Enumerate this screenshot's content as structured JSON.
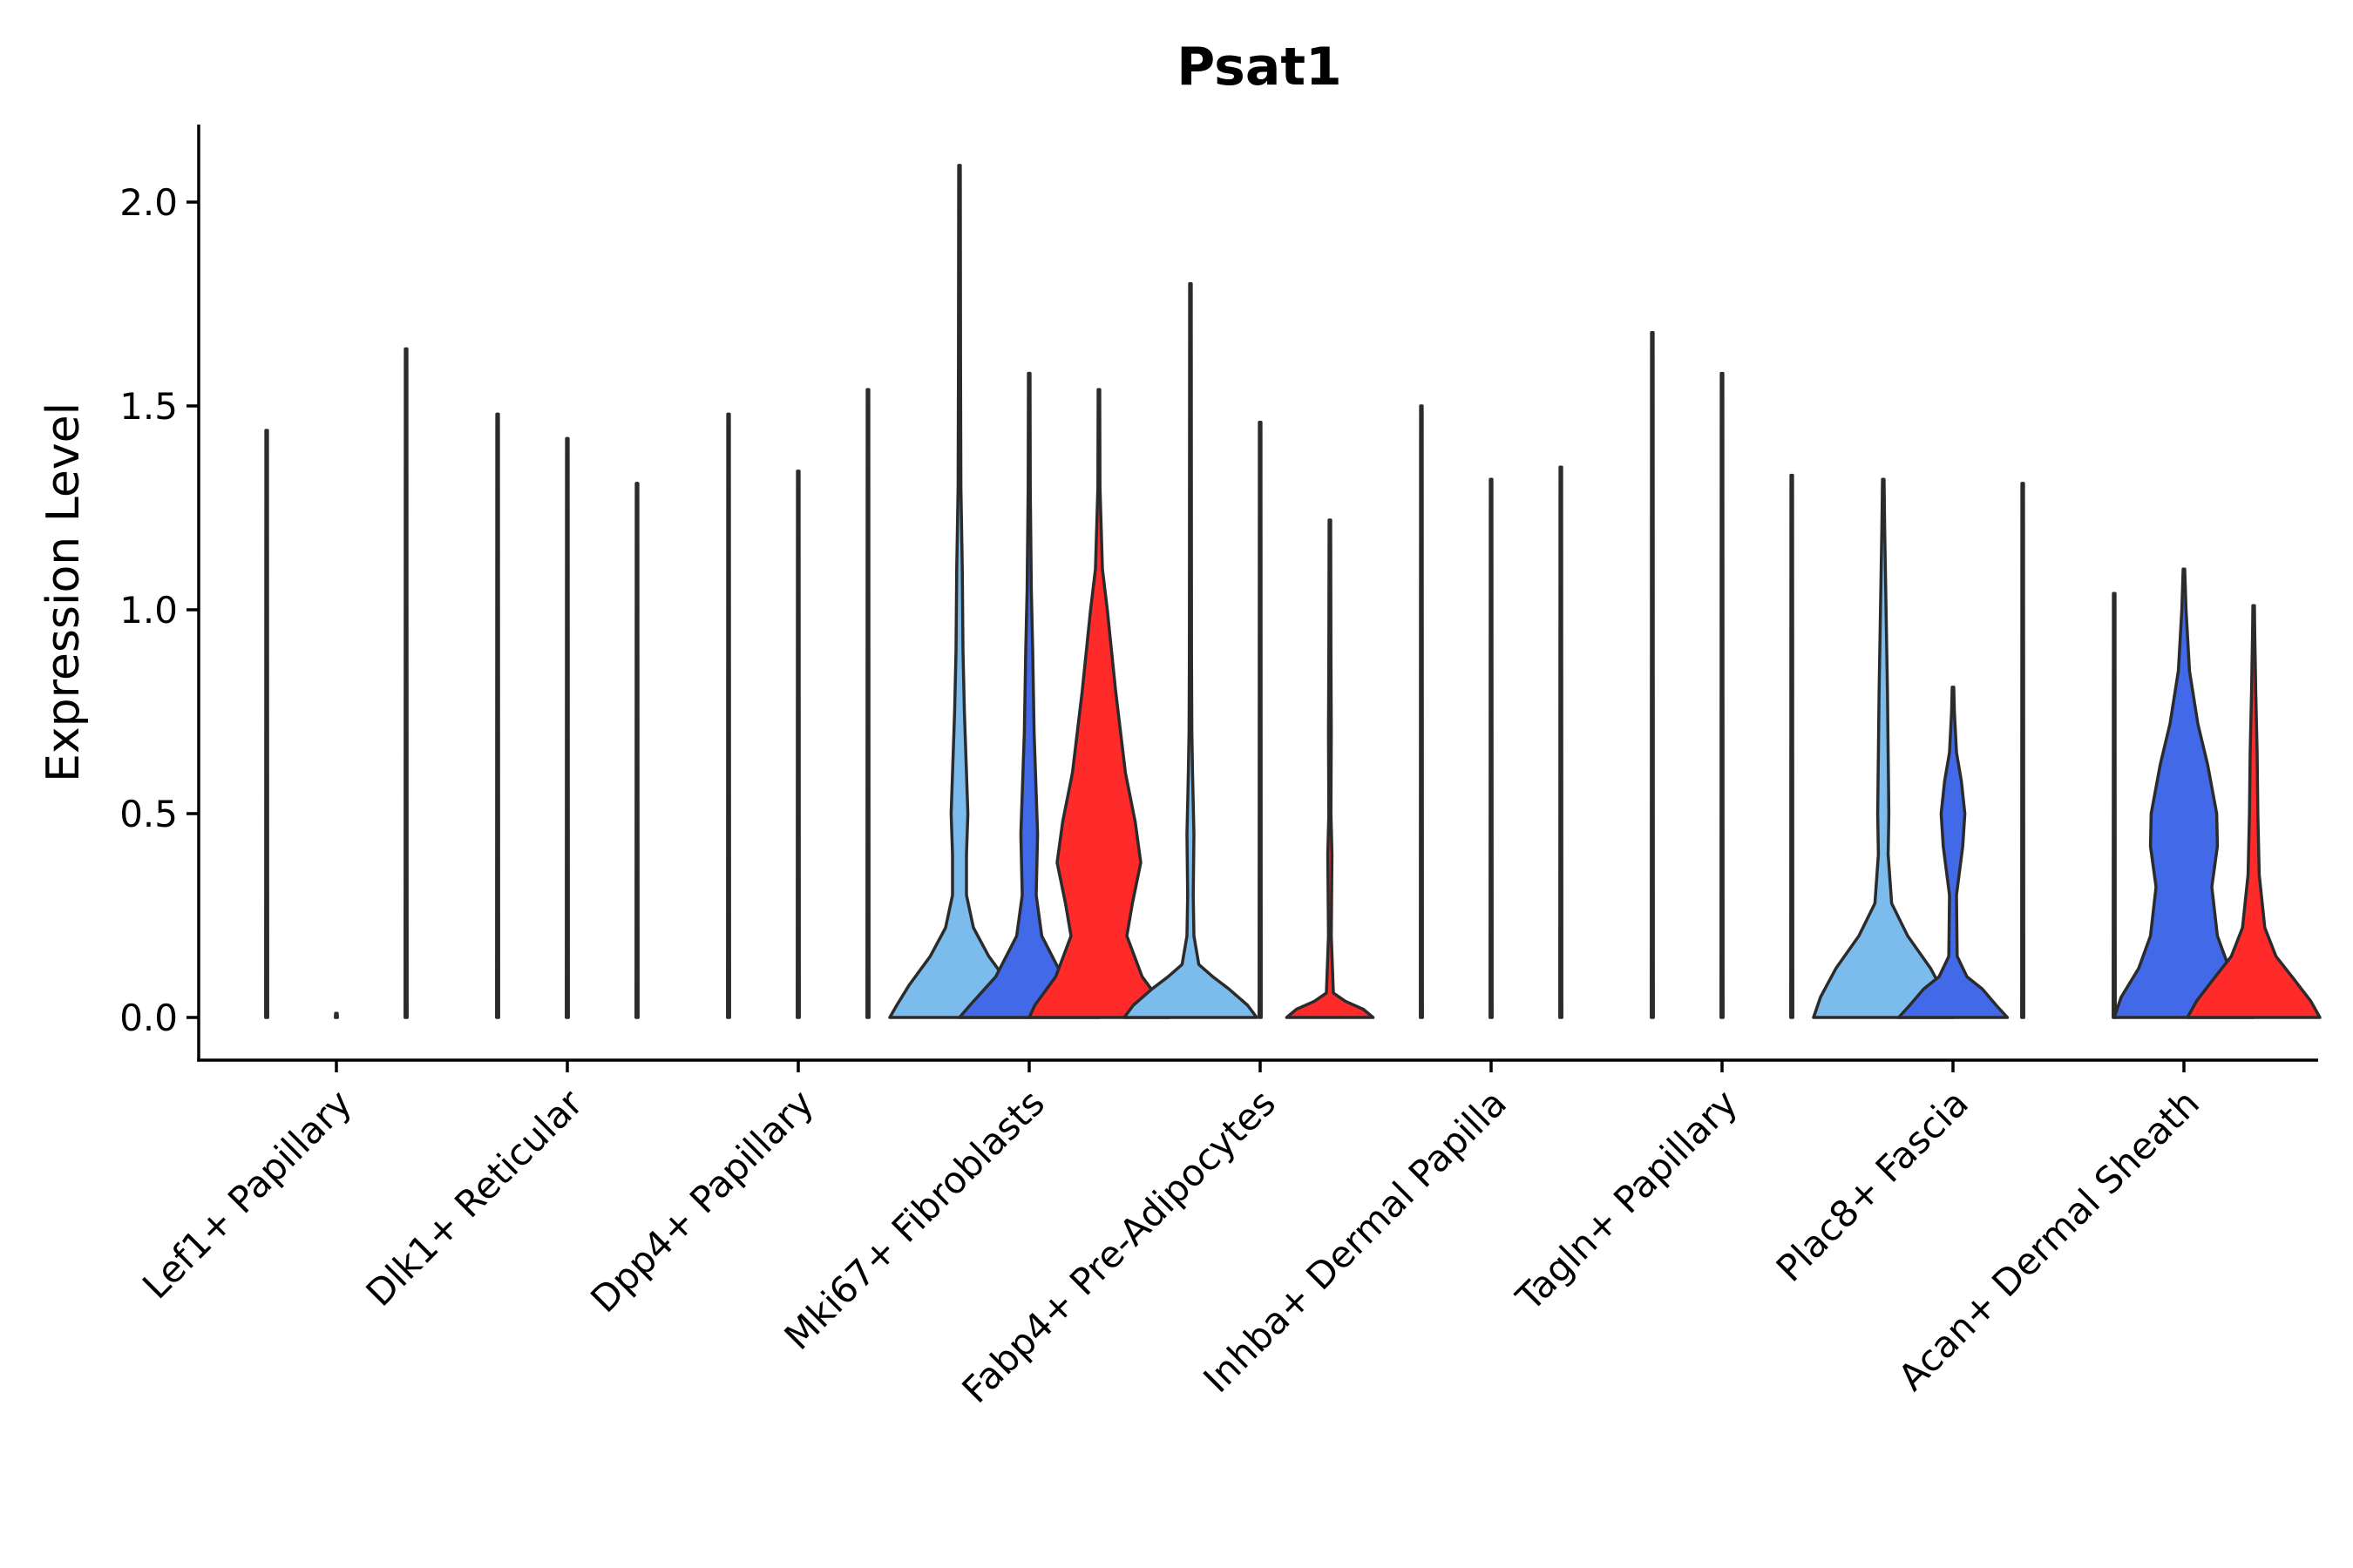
{
  "chart_data": {
    "type": "violin",
    "title": "Psat1",
    "xlabel": "",
    "ylabel": "Expression Level",
    "ylim": [
      -0.1,
      2.2
    ],
    "yticks": [
      0.0,
      0.5,
      1.0,
      1.5,
      2.0
    ],
    "ytick_labels": [
      "0.0",
      "0.5",
      "1.0",
      "1.5",
      "2.0"
    ],
    "categories": [
      "Lef1+ Papillary",
      "Dlk1+ Reticular",
      "Dpp4+ Papillary",
      "Mki67+ Fibroblasts",
      "Fabp4+ Pre-Adipocytes",
      "Inhba+ Dermal Papilla",
      "Tagln+ Papillary",
      "Plac8+ Fascia",
      "Acan+ Dermal Sheath"
    ],
    "series_colors": [
      "#7bbcec",
      "#4169e8",
      "#ff2a2a"
    ],
    "violins": [
      {
        "category": 0,
        "series": 0,
        "max": 1.44,
        "profile": [
          [
            0,
            0.004
          ]
        ]
      },
      {
        "category": 0,
        "series": 1,
        "max": 0.01,
        "profile": [
          [
            0,
            0.004
          ]
        ]
      },
      {
        "category": 0,
        "series": 2,
        "max": 1.64,
        "profile": [
          [
            0,
            0.004
          ]
        ]
      },
      {
        "category": 1,
        "series": 0,
        "max": 1.48,
        "profile": [
          [
            0,
            0.004
          ]
        ]
      },
      {
        "category": 1,
        "series": 1,
        "max": 1.42,
        "profile": [
          [
            0,
            0.004
          ]
        ]
      },
      {
        "category": 1,
        "series": 2,
        "max": 1.31,
        "profile": [
          [
            0,
            0.004
          ]
        ]
      },
      {
        "category": 2,
        "series": 0,
        "max": 1.48,
        "profile": [
          [
            0,
            0.004
          ]
        ]
      },
      {
        "category": 2,
        "series": 1,
        "max": 1.34,
        "profile": [
          [
            0,
            0.004
          ]
        ]
      },
      {
        "category": 2,
        "series": 2,
        "max": 1.54,
        "profile": [
          [
            0,
            0.004
          ]
        ]
      },
      {
        "category": 3,
        "series": 0,
        "max": 2.09,
        "profile": [
          [
            0,
            1.0
          ],
          [
            0.03,
            0.9
          ],
          [
            0.08,
            0.72
          ],
          [
            0.15,
            0.42
          ],
          [
            0.22,
            0.2
          ],
          [
            0.3,
            0.1
          ],
          [
            0.4,
            0.1
          ],
          [
            0.5,
            0.12
          ],
          [
            0.6,
            0.1
          ],
          [
            0.75,
            0.07
          ],
          [
            0.9,
            0.05
          ],
          [
            1.1,
            0.04
          ],
          [
            1.3,
            0.02
          ],
          [
            1.6,
            0.008
          ]
        ]
      },
      {
        "category": 3,
        "series": 1,
        "max": 1.58,
        "profile": [
          [
            0,
            1.0
          ],
          [
            0.03,
            0.85
          ],
          [
            0.1,
            0.48
          ],
          [
            0.2,
            0.18
          ],
          [
            0.3,
            0.1
          ],
          [
            0.45,
            0.12
          ],
          [
            0.55,
            0.1
          ],
          [
            0.7,
            0.07
          ],
          [
            0.9,
            0.05
          ],
          [
            1.05,
            0.03
          ],
          [
            1.3,
            0.01
          ]
        ]
      },
      {
        "category": 3,
        "series": 2,
        "max": 1.54,
        "profile": [
          [
            0,
            1.0
          ],
          [
            0.03,
            0.92
          ],
          [
            0.1,
            0.62
          ],
          [
            0.2,
            0.4
          ],
          [
            0.28,
            0.48
          ],
          [
            0.38,
            0.6
          ],
          [
            0.48,
            0.52
          ],
          [
            0.6,
            0.38
          ],
          [
            0.8,
            0.24
          ],
          [
            1.0,
            0.12
          ],
          [
            1.1,
            0.05
          ],
          [
            1.3,
            0.01
          ]
        ]
      },
      {
        "category": 4,
        "series": 0,
        "max": 1.8,
        "profile": [
          [
            0,
            0.95
          ],
          [
            0.03,
            0.82
          ],
          [
            0.07,
            0.55
          ],
          [
            0.1,
            0.32
          ],
          [
            0.13,
            0.12
          ],
          [
            0.2,
            0.05
          ],
          [
            0.3,
            0.04
          ],
          [
            0.45,
            0.05
          ],
          [
            0.6,
            0.03
          ],
          [
            0.7,
            0.02
          ],
          [
            0.9,
            0.008
          ]
        ]
      },
      {
        "category": 4,
        "series": 1,
        "max": 1.46,
        "profile": [
          [
            0,
            0.004
          ]
        ]
      },
      {
        "category": 4,
        "series": 2,
        "max": 1.22,
        "profile": [
          [
            0,
            0.62
          ],
          [
            0.02,
            0.48
          ],
          [
            0.04,
            0.22
          ],
          [
            0.06,
            0.05
          ],
          [
            0.2,
            0.02
          ],
          [
            0.4,
            0.03
          ],
          [
            0.5,
            0.015
          ],
          [
            0.7,
            0.02
          ],
          [
            0.9,
            0.015
          ]
        ]
      },
      {
        "category": 5,
        "series": 0,
        "max": 1.5,
        "profile": [
          [
            0,
            0.004
          ]
        ]
      },
      {
        "category": 5,
        "series": 1,
        "max": 1.32,
        "profile": [
          [
            0,
            0.004
          ]
        ]
      },
      {
        "category": 5,
        "series": 2,
        "max": 1.35,
        "profile": [
          [
            0,
            0.004
          ]
        ]
      },
      {
        "category": 6,
        "series": 0,
        "max": 1.68,
        "profile": [
          [
            0,
            0.004
          ]
        ]
      },
      {
        "category": 6,
        "series": 1,
        "max": 1.58,
        "profile": [
          [
            0,
            0.004
          ]
        ]
      },
      {
        "category": 6,
        "series": 2,
        "max": 1.33,
        "profile": [
          [
            0,
            0.004
          ]
        ]
      },
      {
        "category": 7,
        "series": 0,
        "max": 1.32,
        "profile": [
          [
            0,
            1.0
          ],
          [
            0.05,
            0.9
          ],
          [
            0.12,
            0.68
          ],
          [
            0.2,
            0.35
          ],
          [
            0.28,
            0.12
          ],
          [
            0.4,
            0.07
          ],
          [
            0.5,
            0.08
          ],
          [
            0.65,
            0.07
          ],
          [
            0.8,
            0.06
          ],
          [
            1.0,
            0.04
          ],
          [
            1.2,
            0.02
          ]
        ]
      },
      {
        "category": 7,
        "series": 1,
        "max": 0.81,
        "profile": [
          [
            0,
            0.78
          ],
          [
            0.03,
            0.62
          ],
          [
            0.07,
            0.42
          ],
          [
            0.1,
            0.2
          ],
          [
            0.15,
            0.06
          ],
          [
            0.3,
            0.05
          ],
          [
            0.42,
            0.14
          ],
          [
            0.5,
            0.17
          ],
          [
            0.58,
            0.12
          ],
          [
            0.65,
            0.05
          ],
          [
            0.75,
            0.02
          ]
        ]
      },
      {
        "category": 7,
        "series": 2,
        "max": 1.31,
        "profile": [
          [
            0,
            0.004
          ]
        ]
      },
      {
        "category": 8,
        "series": 0,
        "max": 1.04,
        "profile": [
          [
            0,
            0.004
          ]
        ]
      },
      {
        "category": 8,
        "series": 1,
        "max": 1.1,
        "profile": [
          [
            0,
            1.0
          ],
          [
            0.05,
            0.9
          ],
          [
            0.12,
            0.65
          ],
          [
            0.2,
            0.48
          ],
          [
            0.32,
            0.4
          ],
          [
            0.42,
            0.48
          ],
          [
            0.5,
            0.47
          ],
          [
            0.62,
            0.34
          ],
          [
            0.72,
            0.2
          ],
          [
            0.85,
            0.08
          ],
          [
            1.0,
            0.03
          ]
        ]
      },
      {
        "category": 8,
        "series": 2,
        "max": 1.01,
        "profile": [
          [
            0,
            0.95
          ],
          [
            0.04,
            0.82
          ],
          [
            0.1,
            0.55
          ],
          [
            0.15,
            0.32
          ],
          [
            0.22,
            0.16
          ],
          [
            0.35,
            0.08
          ],
          [
            0.5,
            0.06
          ],
          [
            0.65,
            0.05
          ],
          [
            0.8,
            0.03
          ],
          [
            0.95,
            0.01
          ]
        ]
      }
    ]
  }
}
